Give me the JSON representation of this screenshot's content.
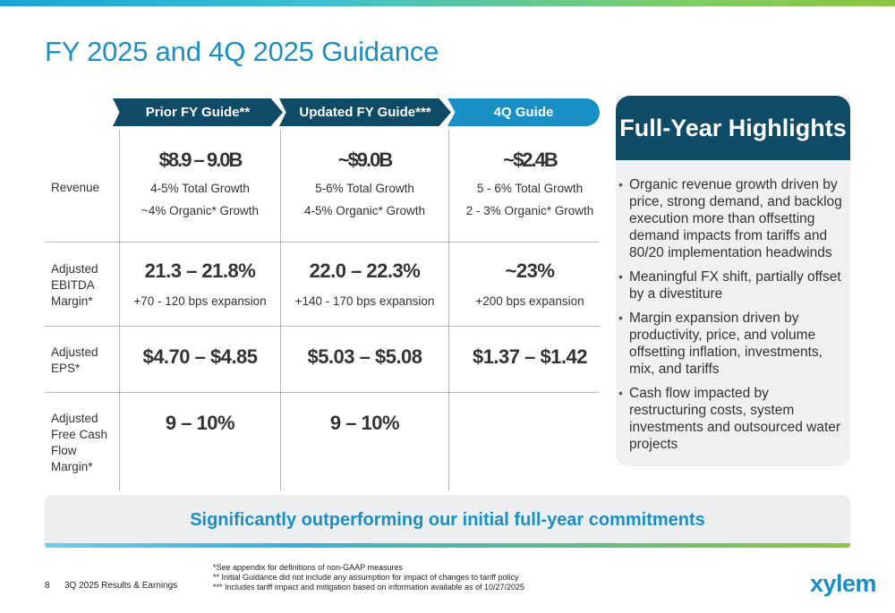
{
  "title": "FY 2025 and 4Q 2025 Guidance",
  "columns": [
    "Prior FY Guide**",
    "Updated FY Guide***",
    "4Q Guide"
  ],
  "rows": [
    {
      "label": "Revenue",
      "cells": [
        {
          "big": "$8.9 – 9.0B",
          "lines": [
            "4-5% Total Growth",
            "~4% Organic* Growth"
          ]
        },
        {
          "big": "~$9.0B",
          "lines": [
            "5-6% Total Growth",
            "4-5% Organic* Growth"
          ]
        },
        {
          "big": "~$2.4B",
          "lines": [
            "5 - 6% Total Growth",
            "2 - 3% Organic* Growth"
          ]
        }
      ]
    },
    {
      "label": "Adjusted EBITDA Margin*",
      "cells": [
        {
          "big": "21.3 – 21.8%",
          "lines": [
            "+70 - 120 bps expansion"
          ]
        },
        {
          "big": "22.0 – 22.3%",
          "lines": [
            "+140 - 170 bps expansion"
          ]
        },
        {
          "big": "~23%",
          "lines": [
            "+200 bps expansion"
          ]
        }
      ]
    },
    {
      "label": "Adjusted EPS*",
      "cells": [
        {
          "big": "$4.70 – $4.85"
        },
        {
          "big": "$5.03 – $5.08"
        },
        {
          "big": "$1.37 – $1.42"
        }
      ]
    },
    {
      "label": "Adjusted Free Cash Flow Margin*",
      "cells": [
        {
          "big": "9 – 10%"
        },
        {
          "big": "9 – 10%"
        },
        {
          "big": ""
        }
      ]
    }
  ],
  "highlights": {
    "title": "Full-Year Highlights",
    "items": [
      "Organic revenue growth driven by price, strong demand, and backlog execution more than offsetting demand impacts from tariffs and 80/20 implementation headwinds",
      "Meaningful FX shift, partially offset by a divestiture",
      "Margin  expansion driven by productivity, price, and volume offsetting inflation, investments, mix, and tariffs",
      "Cash flow impacted by restructuring costs, system investments and outsourced water projects"
    ]
  },
  "banner": "Significantly outperforming our initial full-year commitments",
  "footer": {
    "page": "8",
    "section": "3Q 2025 Results & Earnings",
    "notes": [
      "*See appendix for definitions of non-GAAP measures",
      "** Initial Guidance did not include any assumption for impact of changes to tariff policy",
      "*** Includes tariff impact and mitigation based on information available as of 10/27/2025"
    ]
  },
  "logo": "xylem",
  "colors": {
    "accent_blue": "#1a8fc6",
    "dark_navy": "#0f4a66",
    "green": "#8cc63f"
  }
}
